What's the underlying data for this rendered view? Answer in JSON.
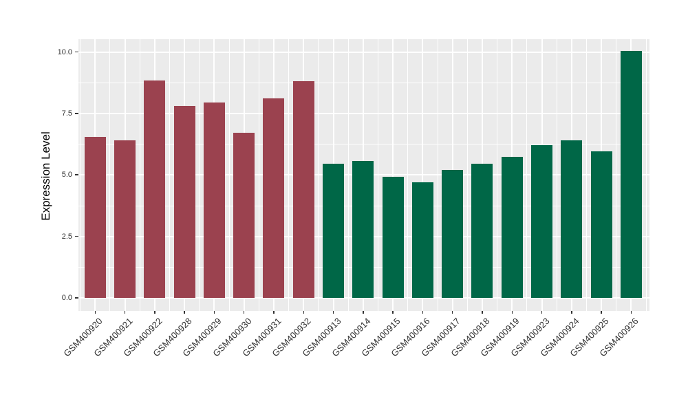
{
  "chart_data": {
    "type": "bar",
    "title": "",
    "xlabel": "",
    "ylabel": "Expression Level",
    "ylim": [
      0,
      10.55
    ],
    "yticks": [
      0,
      2.5,
      5,
      7.5,
      10
    ],
    "ytick_labels": [
      "0.0",
      "2.5",
      "5.0",
      "7.5",
      "10.0"
    ],
    "yticks_minor": [
      1.25,
      3.75,
      6.25,
      8.75
    ],
    "grid": "major-and-minor",
    "legend_position": "none",
    "categories": [
      "GSM400920",
      "GSM400921",
      "GSM400922",
      "GSM400928",
      "GSM400929",
      "GSM400930",
      "GSM400931",
      "GSM400932",
      "GSM400913",
      "GSM400914",
      "GSM400915",
      "GSM400916",
      "GSM400917",
      "GSM400918",
      "GSM400919",
      "GSM400923",
      "GSM400924",
      "GSM400925",
      "GSM400926"
    ],
    "series": [
      {
        "name": "Expression Level",
        "values": [
          6.55,
          6.4,
          8.85,
          7.81,
          7.96,
          6.72,
          8.12,
          8.82,
          5.45,
          5.57,
          4.93,
          4.7,
          5.21,
          5.46,
          5.75,
          6.22,
          6.4,
          5.95,
          10.05
        ]
      }
    ],
    "bar_groups": [
      "maroon",
      "maroon",
      "maroon",
      "maroon",
      "maroon",
      "maroon",
      "maroon",
      "maroon",
      "green",
      "green",
      "green",
      "green",
      "green",
      "green",
      "green",
      "green",
      "green",
      "green",
      "green"
    ],
    "group_colors": {
      "maroon": "#9B424F",
      "green": "#006747"
    }
  },
  "style": {
    "panel_background": "#EBEBEB",
    "grid_color": "#FFFFFF",
    "tick_mark_color": "#333333",
    "axis_text_color": "#303030",
    "axis_title_color": "#000000",
    "figure_background": "#FFFFFF"
  }
}
